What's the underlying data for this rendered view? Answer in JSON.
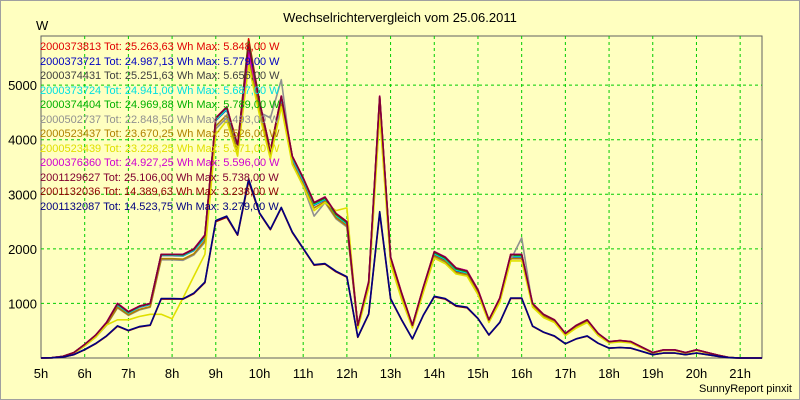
{
  "header": {
    "title": "Wechselrichtervergleich vom 25.06.2011",
    "unit": "W",
    "credit": "SunnyReport pinxit"
  },
  "colors": {
    "background": "#ffffc0",
    "grid": "#00cc00"
  },
  "legend": [
    {
      "text": "2000373813 Tot: 25.263,63 Wh Max: 5.848,00 W",
      "color": "#e00000"
    },
    {
      "text": "2000373721 Tot: 24.987,13 Wh Max: 5.779,00 W",
      "color": "#0000c0"
    },
    {
      "text": "2000374431 Tot: 25.251,63 Wh Max: 5.656,00 W",
      "color": "#404040"
    },
    {
      "text": "2000373724 Tot: 24.941,00 Wh Max: 5.687,00 W",
      "color": "#00e0e0"
    },
    {
      "text": "2000374404 Tot: 24.969,88 Wh Max: 5.789,00 W",
      "color": "#00b000"
    },
    {
      "text": "2000502737 Tot: 22.848,50 Wh Max: 5.493,00 W",
      "color": "#909090"
    },
    {
      "text": "2000523437 Tot: 23.670,25 Wh Max: 5.526,00 W",
      "color": "#b08000"
    },
    {
      "text": "2000523439 Tot: 23.228,25 Wh Max: 5.371,00 W",
      "color": "#e0e000"
    },
    {
      "text": "2000376360 Tot: 24.927,25 Wh Max: 5.596,00 W",
      "color": "#d000d0"
    },
    {
      "text": "2001129627 Tot: 25.106,00 Wh Max: 5.738,00 W",
      "color": "#800030"
    },
    {
      "text": "2001132036 Tot: 14.389,63 Wh Max: 3.238,00 W",
      "color": "#900000"
    },
    {
      "text": "2001132087 Tot: 14.523,75 Wh Max: 3.279,00 W",
      "color": "#000080"
    }
  ],
  "chart_data": {
    "type": "line",
    "title": "Wechselrichtervergleich vom 25.06.2011",
    "ylabel": "W",
    "xlabel": "",
    "xlim": [
      5,
      21.5
    ],
    "ylim": [
      0,
      5900
    ],
    "grid": true,
    "legend_position": "top-left",
    "x_ticks": [
      "5h",
      "6h",
      "7h",
      "8h",
      "9h",
      "10h",
      "11h",
      "12h",
      "13h",
      "14h",
      "15h",
      "16h",
      "17h",
      "18h",
      "19h",
      "20h",
      "21h"
    ],
    "y_ticks": [
      1000,
      2000,
      3000,
      4000,
      5000
    ],
    "x": [
      5.0,
      5.25,
      5.5,
      5.75,
      6.0,
      6.25,
      6.5,
      6.75,
      7.0,
      7.25,
      7.5,
      7.75,
      8.0,
      8.25,
      8.5,
      8.75,
      9.0,
      9.25,
      9.5,
      9.75,
      10.0,
      10.25,
      10.5,
      10.75,
      11.0,
      11.25,
      11.5,
      11.75,
      12.0,
      12.25,
      12.5,
      12.75,
      13.0,
      13.25,
      13.5,
      13.75,
      14.0,
      14.25,
      14.5,
      14.75,
      15.0,
      15.25,
      15.5,
      15.75,
      16.0,
      16.25,
      16.5,
      16.75,
      17.0,
      17.25,
      17.5,
      17.75,
      18.0,
      18.25,
      18.5,
      18.75,
      19.0,
      19.25,
      19.5,
      19.75,
      20.0,
      20.25,
      20.5,
      20.75,
      21.0,
      21.25,
      21.5
    ],
    "series": [
      {
        "name": "2000373813",
        "color": "#e00000",
        "values": [
          0,
          5,
          30,
          100,
          250,
          420,
          650,
          1000,
          850,
          950,
          1000,
          1900,
          1900,
          1900,
          2000,
          2250,
          4400,
          4600,
          3900,
          5848,
          4700,
          3800,
          4800,
          3700,
          3300,
          2850,
          2950,
          2650,
          2500,
          600,
          1400,
          4800,
          1850,
          1200,
          600,
          1300,
          1950,
          1850,
          1650,
          1600,
          1250,
          700,
          1100,
          1900,
          1900,
          1000,
          800,
          700,
          450,
          600,
          700,
          450,
          300,
          320,
          300,
          200,
          100,
          150,
          150,
          100,
          150,
          100,
          50,
          10,
          0,
          0,
          0
        ],
        "names_note": ""
      },
      {
        "name": "2000373721",
        "color": "#0000c0",
        "values": [
          0,
          5,
          30,
          90,
          240,
          400,
          620,
          970,
          820,
          930,
          980,
          1880,
          1880,
          1870,
          1970,
          2200,
          4350,
          4550,
          3850,
          5779,
          4650,
          3750,
          4750,
          3650,
          3250,
          2800,
          2900,
          2600,
          2450,
          580,
          1350,
          4750,
          1800,
          1150,
          580,
          1250,
          1900,
          1800,
          1600,
          1550,
          1200,
          680,
          1050,
          1850,
          1850,
          970,
          780,
          680,
          430,
          580,
          680,
          430,
          290,
          310,
          290,
          190,
          95,
          145,
          145,
          95,
          145,
          95,
          48,
          8,
          0,
          0,
          0
        ]
      },
      {
        "name": "2000374431",
        "color": "#404040",
        "values": [
          0,
          5,
          28,
          95,
          245,
          410,
          640,
          980,
          830,
          940,
          990,
          1890,
          1890,
          1880,
          1980,
          2220,
          4380,
          4570,
          3880,
          5656,
          4680,
          3780,
          4780,
          3680,
          3280,
          2820,
          2920,
          2620,
          2470,
          590,
          1370,
          4700,
          1820,
          1170,
          590,
          1270,
          1920,
          1820,
          1620,
          1570,
          1220,
          690,
          1070,
          1870,
          1870,
          980,
          790,
          690,
          440,
          590,
          690,
          440,
          295,
          315,
          295,
          195,
          97,
          147,
          147,
          97,
          147,
          97,
          49,
          9,
          0,
          0,
          0
        ]
      },
      {
        "name": "2000373724",
        "color": "#00e0e0",
        "values": [
          0,
          5,
          29,
          92,
          242,
          405,
          630,
          975,
          825,
          935,
          985,
          1885,
          1885,
          1875,
          1975,
          2210,
          4360,
          4560,
          3860,
          5687,
          4660,
          3760,
          4760,
          3660,
          3260,
          2810,
          2910,
          2610,
          2460,
          585,
          1360,
          4720,
          1810,
          1160,
          585,
          1260,
          1910,
          1810,
          1610,
          1560,
          1210,
          685,
          1060,
          1860,
          1860,
          975,
          785,
          685,
          435,
          585,
          685,
          435,
          292,
          312,
          292,
          192,
          96,
          146,
          146,
          96,
          146,
          96,
          48,
          8,
          0,
          0,
          0
        ]
      },
      {
        "name": "2000374404",
        "color": "#00b000",
        "values": [
          0,
          5,
          30,
          96,
          248,
          415,
          645,
          990,
          840,
          945,
          995,
          1895,
          1895,
          1890,
          1990,
          2240,
          4390,
          4590,
          3890,
          5789,
          4690,
          3790,
          4790,
          3690,
          3290,
          2830,
          2930,
          2630,
          2480,
          595,
          1380,
          4760,
          1830,
          1180,
          595,
          1280,
          1930,
          1830,
          1630,
          1580,
          1230,
          695,
          1080,
          1880,
          1880,
          985,
          795,
          695,
          445,
          595,
          695,
          445,
          297,
          317,
          297,
          197,
          98,
          148,
          148,
          98,
          148,
          98,
          49,
          9,
          0,
          0,
          0
        ]
      },
      {
        "name": "2000502737",
        "color": "#909090",
        "values": [
          0,
          4,
          25,
          80,
          220,
          380,
          600,
          920,
          780,
          880,
          930,
          1800,
          1800,
          1790,
          1890,
          2120,
          4200,
          4400,
          3750,
          5493,
          4500,
          4400,
          5100,
          3550,
          3150,
          2600,
          2850,
          2550,
          2400,
          560,
          1300,
          4500,
          1750,
          1100,
          560,
          1220,
          1850,
          1750,
          1560,
          1520,
          1180,
          660,
          1040,
          1800,
          2200,
          950,
          760,
          660,
          420,
          560,
          660,
          420,
          280,
          300,
          280,
          185,
          92,
          140,
          140,
          92,
          140,
          92,
          45,
          7,
          0,
          0,
          0
        ]
      },
      {
        "name": "2000523437",
        "color": "#b08000",
        "values": [
          0,
          4,
          26,
          85,
          225,
          385,
          610,
          930,
          790,
          890,
          940,
          1820,
          1820,
          1810,
          1910,
          2150,
          4250,
          4450,
          3780,
          5526,
          4550,
          3700,
          4650,
          3580,
          3180,
          2750,
          2870,
          2570,
          2420,
          565,
          1320,
          4550,
          1770,
          1120,
          565,
          1230,
          1870,
          1770,
          1570,
          1530,
          1190,
          665,
          1050,
          1820,
          1820,
          955,
          765,
          665,
          425,
          565,
          665,
          425,
          283,
          303,
          283,
          187,
          93,
          142,
          142,
          93,
          142,
          93,
          46,
          7,
          0,
          0,
          0
        ]
      },
      {
        "name": "2000523439",
        "color": "#e0e000",
        "values": [
          0,
          4,
          25,
          82,
          222,
          382,
          605,
          700,
          700,
          760,
          800,
          800,
          720,
          1100,
          1500,
          1900,
          4100,
          4350,
          3700,
          5371,
          4450,
          3650,
          4600,
          3550,
          3150,
          2700,
          2850,
          2700,
          2750,
          540,
          1280,
          4450,
          1720,
          1080,
          550,
          1200,
          1830,
          1730,
          1540,
          1500,
          1160,
          650,
          1020,
          1780,
          1780,
          930,
          740,
          650,
          410,
          550,
          650,
          410,
          275,
          295,
          275,
          180,
          90,
          138,
          138,
          90,
          138,
          90,
          44,
          6,
          0,
          0,
          0
        ]
      },
      {
        "name": "2000376360",
        "color": "#d000d0",
        "values": [
          0,
          5,
          30,
          98,
          250,
          420,
          655,
          1000,
          850,
          950,
          1000,
          1900,
          1900,
          1900,
          2000,
          2260,
          4400,
          4600,
          3900,
          5596,
          4700,
          3800,
          4800,
          3700,
          3300,
          2850,
          2950,
          2650,
          2500,
          600,
          1400,
          4800,
          1850,
          1200,
          600,
          1300,
          1950,
          1850,
          1650,
          1600,
          1250,
          700,
          1100,
          1900,
          1900,
          1000,
          800,
          700,
          450,
          600,
          700,
          450,
          300,
          320,
          300,
          200,
          100,
          150,
          150,
          100,
          150,
          100,
          50,
          10,
          0,
          0,
          0
        ]
      },
      {
        "name": "2001129627",
        "color": "#800030",
        "values": [
          0,
          5,
          30,
          99,
          250,
          418,
          648,
          995,
          845,
          948,
          998,
          1898,
          1898,
          1895,
          1995,
          2250,
          4395,
          4595,
          3895,
          5738,
          4695,
          3795,
          4795,
          3695,
          3295,
          2845,
          2945,
          2645,
          2495,
          598,
          1395,
          4790,
          1845,
          1195,
          598,
          1295,
          1945,
          1845,
          1645,
          1595,
          1245,
          698,
          1095,
          1895,
          1895,
          995,
          798,
          698,
          448,
          598,
          698,
          448,
          299,
          319,
          299,
          199,
          99,
          149,
          149,
          99,
          149,
          99,
          50,
          10,
          0,
          0,
          0
        ]
      },
      {
        "name": "2001132036",
        "color": "#900000",
        "values": [
          0,
          3,
          15,
          60,
          150,
          260,
          400,
          580,
          500,
          570,
          600,
          1080,
          1080,
          1080,
          1180,
          1380,
          2500,
          2580,
          2250,
          3238,
          2650,
          2350,
          2750,
          2300,
          2000,
          1700,
          1720,
          1580,
          1480,
          380,
          800,
          2650,
          1080,
          700,
          350,
          780,
          1120,
          1080,
          950,
          920,
          720,
          420,
          650,
          1090,
          1090,
          580,
          470,
          400,
          260,
          350,
          400,
          270,
          180,
          190,
          180,
          120,
          60,
          90,
          90,
          60,
          90,
          60,
          30,
          6,
          0,
          0,
          0
        ]
      },
      {
        "name": "2001132087",
        "color": "#000080",
        "values": [
          0,
          3,
          16,
          62,
          155,
          265,
          405,
          590,
          505,
          575,
          605,
          1090,
          1090,
          1085,
          1190,
          1390,
          2520,
          2600,
          2260,
          3279,
          2660,
          2360,
          2760,
          2310,
          2010,
          1710,
          1730,
          1590,
          1490,
          385,
          810,
          2680,
          1090,
          705,
          352,
          785,
          1130,
          1090,
          960,
          930,
          725,
          425,
          655,
          1100,
          1100,
          585,
          475,
          405,
          262,
          352,
          405,
          272,
          182,
          192,
          182,
          122,
          61,
          91,
          91,
          61,
          91,
          61,
          31,
          6,
          0,
          0,
          0
        ]
      }
    ]
  }
}
